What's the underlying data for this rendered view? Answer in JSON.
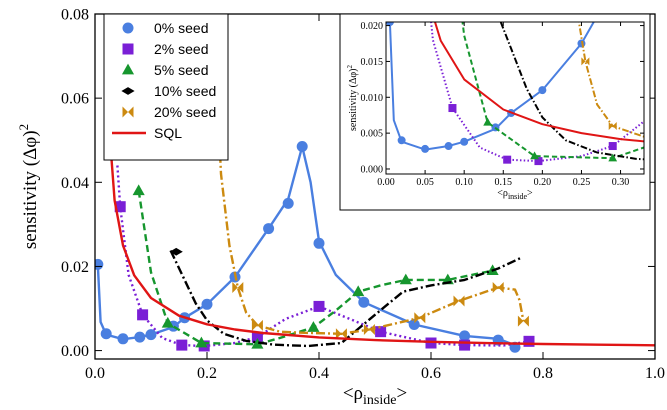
{
  "chart_data": {
    "type": "line",
    "main": {
      "xlabel": "<ρ",
      "xlabel_sub": "inside",
      "xlabel_end": ">",
      "ylabel": "sensitivity (Δφ)",
      "ylabel_sup": "2",
      "xlim": [
        0,
        1.0
      ],
      "ylim": [
        -0.002,
        0.08
      ],
      "x_ticks": [
        "0.0",
        "0.2",
        "0.4",
        "0.6",
        "0.8",
        "1.0"
      ],
      "x_tick_values": [
        0,
        0.2,
        0.4,
        0.6,
        0.8,
        1.0
      ],
      "y_ticks": [
        "0.00",
        "0.02",
        "0.04",
        "0.06",
        "0.08"
      ],
      "y_tick_values": [
        0,
        0.02,
        0.04,
        0.06,
        0.08
      ],
      "legend_position": "top-left"
    },
    "inset": {
      "xlabel": "<ρ",
      "xlabel_sub": "inside",
      "xlabel_end": ">",
      "ylabel": "sensitivity (Δφ)",
      "ylabel_sup": "2",
      "xlim": [
        0,
        0.33
      ],
      "ylim": [
        -0.0007,
        0.0205
      ],
      "x_ticks": [
        "0.00",
        "0.05",
        "0.10",
        "0.15",
        "0.20",
        "0.25",
        "0.30"
      ],
      "x_tick_values": [
        0,
        0.05,
        0.1,
        0.15,
        0.2,
        0.25,
        0.3
      ],
      "y_ticks": [
        "0.000",
        "0.005",
        "0.010",
        "0.015",
        "0.020"
      ],
      "y_tick_values": [
        0,
        0.005,
        0.01,
        0.015,
        0.02
      ]
    },
    "series": [
      {
        "name": "0% seed",
        "color": "#4a7fe0",
        "dash": "",
        "marker": "circle",
        "markers": [
          [
            0.005,
            0.0205
          ],
          [
            0.02,
            0.004
          ],
          [
            0.05,
            0.0028
          ],
          [
            0.08,
            0.0032
          ],
          [
            0.1,
            0.0038
          ],
          [
            0.14,
            0.0058
          ],
          [
            0.16,
            0.0078
          ],
          [
            0.2,
            0.011
          ],
          [
            0.25,
            0.0175
          ],
          [
            0.31,
            0.029
          ],
          [
            0.345,
            0.035
          ],
          [
            0.37,
            0.0485
          ],
          [
            0.4,
            0.0255
          ],
          [
            0.48,
            0.0115
          ],
          [
            0.57,
            0.0062
          ],
          [
            0.66,
            0.0035
          ],
          [
            0.72,
            0.0025
          ],
          [
            0.75,
            0.0008
          ]
        ],
        "line": [
          [
            0.005,
            0.0205
          ],
          [
            0.01,
            0.0068
          ],
          [
            0.02,
            0.0038
          ],
          [
            0.05,
            0.0027
          ],
          [
            0.08,
            0.0032
          ],
          [
            0.1,
            0.0038
          ],
          [
            0.14,
            0.0056
          ],
          [
            0.16,
            0.0078
          ],
          [
            0.2,
            0.011
          ],
          [
            0.25,
            0.0175
          ],
          [
            0.31,
            0.029
          ],
          [
            0.345,
            0.036
          ],
          [
            0.37,
            0.0485
          ],
          [
            0.385,
            0.04
          ],
          [
            0.4,
            0.026
          ],
          [
            0.43,
            0.018
          ],
          [
            0.48,
            0.0115
          ],
          [
            0.57,
            0.0062
          ],
          [
            0.66,
            0.0035
          ],
          [
            0.72,
            0.0028
          ],
          [
            0.74,
            0.0018
          ],
          [
            0.75,
            0.0008
          ]
        ]
      },
      {
        "name": "2% seed",
        "color": "#7a1fd6",
        "dash": "2,3",
        "marker": "square",
        "markers": [
          [
            0.045,
            0.0342
          ],
          [
            0.085,
            0.0085
          ],
          [
            0.155,
            0.0013
          ],
          [
            0.195,
            0.0011
          ],
          [
            0.29,
            0.0032
          ],
          [
            0.4,
            0.0105
          ],
          [
            0.51,
            0.0045
          ],
          [
            0.6,
            0.0018
          ],
          [
            0.66,
            0.0013
          ],
          [
            0.775,
            0.0022
          ]
        ],
        "line": [
          [
            0.04,
            0.044
          ],
          [
            0.045,
            0.0342
          ],
          [
            0.06,
            0.018
          ],
          [
            0.085,
            0.0085
          ],
          [
            0.12,
            0.003
          ],
          [
            0.155,
            0.0013
          ],
          [
            0.195,
            0.0011
          ],
          [
            0.25,
            0.0018
          ],
          [
            0.29,
            0.0032
          ],
          [
            0.34,
            0.0075
          ],
          [
            0.4,
            0.0105
          ],
          [
            0.45,
            0.0078
          ],
          [
            0.51,
            0.0045
          ],
          [
            0.6,
            0.0018
          ],
          [
            0.66,
            0.0013
          ],
          [
            0.73,
            0.0012
          ],
          [
            0.775,
            0.0022
          ]
        ]
      },
      {
        "name": "5% seed",
        "color": "#16962e",
        "dash": "7,4",
        "marker": "triangle",
        "markers": [
          [
            0.078,
            0.038
          ],
          [
            0.13,
            0.0065
          ],
          [
            0.19,
            0.0018
          ],
          [
            0.29,
            0.0015
          ],
          [
            0.39,
            0.0055
          ],
          [
            0.47,
            0.014
          ],
          [
            0.555,
            0.0168
          ],
          [
            0.63,
            0.0168
          ],
          [
            0.71,
            0.019
          ]
        ],
        "line": [
          [
            0.078,
            0.038
          ],
          [
            0.1,
            0.0186
          ],
          [
            0.13,
            0.0065
          ],
          [
            0.19,
            0.0018
          ],
          [
            0.29,
            0.0015
          ],
          [
            0.33,
            0.003
          ],
          [
            0.39,
            0.0055
          ],
          [
            0.43,
            0.0095
          ],
          [
            0.47,
            0.014
          ],
          [
            0.51,
            0.0155
          ],
          [
            0.555,
            0.0168
          ],
          [
            0.63,
            0.0168
          ],
          [
            0.71,
            0.019
          ]
        ]
      },
      {
        "name": "10% seed",
        "color": "#000000",
        "dash": "9,3,2,3",
        "marker": "diamond",
        "markers": [
          [
            0.145,
            0.0235
          ]
        ],
        "line": [
          [
            0.135,
            0.0238
          ],
          [
            0.16,
            0.0168
          ],
          [
            0.18,
            0.0112
          ],
          [
            0.2,
            0.0072
          ],
          [
            0.23,
            0.004
          ],
          [
            0.27,
            0.0023
          ],
          [
            0.32,
            0.0014
          ],
          [
            0.38,
            0.0011
          ],
          [
            0.44,
            0.0018
          ],
          [
            0.5,
            0.0085
          ],
          [
            0.55,
            0.014
          ],
          [
            0.6,
            0.0155
          ],
          [
            0.66,
            0.0168
          ],
          [
            0.72,
            0.0195
          ],
          [
            0.76,
            0.022
          ]
        ]
      },
      {
        "name": "20% seed",
        "color": "#cc8a10",
        "dash": "9,3,2,3",
        "marker": "bowtie",
        "markers": [
          [
            0.255,
            0.015
          ],
          [
            0.29,
            0.006
          ],
          [
            0.44,
            0.004
          ],
          [
            0.49,
            0.005
          ],
          [
            0.58,
            0.0078
          ],
          [
            0.65,
            0.0118
          ],
          [
            0.72,
            0.015
          ],
          [
            0.765,
            0.007
          ]
        ],
        "line": [
          [
            0.215,
            0.071
          ],
          [
            0.225,
            0.042
          ],
          [
            0.24,
            0.025
          ],
          [
            0.255,
            0.015
          ],
          [
            0.27,
            0.009
          ],
          [
            0.29,
            0.006
          ],
          [
            0.33,
            0.0045
          ],
          [
            0.38,
            0.0042
          ],
          [
            0.44,
            0.004
          ],
          [
            0.49,
            0.005
          ],
          [
            0.58,
            0.0078
          ],
          [
            0.65,
            0.0118
          ],
          [
            0.72,
            0.015
          ],
          [
            0.75,
            0.0145
          ],
          [
            0.758,
            0.012
          ],
          [
            0.765,
            0.007
          ]
        ]
      },
      {
        "name": "SQL",
        "color": "#e01515",
        "dash": "",
        "marker": "none",
        "markers": [],
        "line": [
          [
            0.027,
            0.05
          ],
          [
            0.035,
            0.0357
          ],
          [
            0.05,
            0.025
          ],
          [
            0.07,
            0.0179
          ],
          [
            0.1,
            0.0125
          ],
          [
            0.15,
            0.0083
          ],
          [
            0.2,
            0.00625
          ],
          [
            0.25,
            0.005
          ],
          [
            0.3,
            0.00417
          ],
          [
            0.4,
            0.003125
          ],
          [
            0.5,
            0.0025
          ],
          [
            0.6,
            0.00208
          ],
          [
            0.7,
            0.00179
          ],
          [
            0.8,
            0.00156
          ],
          [
            0.9,
            0.00139
          ],
          [
            1.0,
            0.00125
          ]
        ]
      }
    ]
  }
}
